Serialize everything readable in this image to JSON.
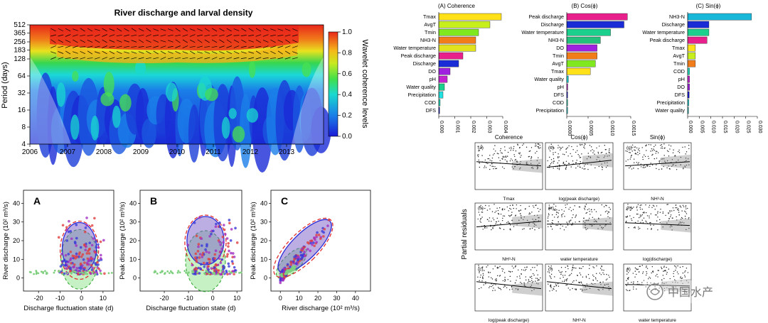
{
  "wavelet": {
    "title": "River discharge and larval density",
    "ylabel": "Period (days)",
    "yticks": [
      "512",
      "365",
      "256",
      "183",
      "128",
      "64",
      "32",
      "16",
      "8",
      "4"
    ],
    "xticks": [
      "2006",
      "2007",
      "2008",
      "2009",
      "2010",
      "2011",
      "2012",
      "2013"
    ],
    "colorbar_label": "Wavelet coherence levels",
    "colorbar_ticks": [
      "1.0",
      "0.8",
      "0.6",
      "0.4",
      "0.2",
      "0.0"
    ],
    "colors": {
      "high": "#e8261a",
      "mid": "#f5e01e",
      "low": "#1e2fd6"
    }
  },
  "scatter": {
    "A": {
      "label": "A",
      "ylabel": "River discharge (10² m³/s)",
      "xlabel": "Discharge fluctuation state (d)",
      "xticks": [
        "-20",
        "-10",
        "0",
        "10"
      ],
      "yticks": [
        "0",
        "10",
        "20",
        "30",
        "40"
      ]
    },
    "B": {
      "label": "B",
      "ylabel": "Peak discharge (10² m³/s)",
      "xlabel": "Discharge fluctuation state (d)",
      "xticks": [
        "-20",
        "-10",
        "0",
        "10"
      ],
      "yticks": [
        "0",
        "10",
        "20",
        "30",
        "40"
      ]
    },
    "C": {
      "label": "C",
      "ylabel": "Peak discharge (10² m³/s)",
      "xlabel": "River discharge (10² m³/s)",
      "xticks": [
        "0",
        "10",
        "20",
        "30",
        "40"
      ],
      "yticks": [
        "0",
        "10",
        "20",
        "30",
        "40"
      ]
    }
  },
  "importance": {
    "panels": [
      {
        "title": "(A) Coherence",
        "xticks": [
          "0.000",
          "0.001",
          "0.002",
          "0.003",
          "0.004"
        ]
      },
      {
        "title": "(B) Cos(ϕ)",
        "xticks": [
          "0.0000",
          "0.0005",
          "0.0010",
          "0.0015"
        ]
      },
      {
        "title": "(C) Sin(ϕ)",
        "xticks": [
          "0.000",
          "0.005",
          "0.010",
          "0.015",
          "0.020",
          "0.025",
          "0.030"
        ]
      }
    ]
  },
  "partial": {
    "col_titles": [
      "Coherence",
      "Cos(ϕ)",
      "Sin(ϕ)"
    ],
    "ylabel": "Partial residuals",
    "xlabels": [
      "Tmax",
      "log(peak discharge)",
      "NH³-N",
      "NH³-N",
      "water temperature",
      "log(discharge)",
      "log(peak discharge)",
      "NH³-N",
      "water temperature"
    ],
    "panel_letters": [
      "(a)",
      "(d)",
      "(g)",
      "(b)",
      "(e)",
      "(h)",
      "(c)",
      "(f)",
      "(i)"
    ],
    "watermark": "中国水产"
  },
  "chart_data": [
    {
      "type": "heatmap",
      "title": "River discharge and larval density",
      "xlabel": "",
      "ylabel": "Period (days)",
      "x": [
        "2006",
        "2007",
        "2008",
        "2009",
        "2010",
        "2011",
        "2012",
        "2013"
      ],
      "y": [
        4,
        8,
        16,
        32,
        64,
        128,
        183,
        256,
        365,
        512
      ],
      "log_y": true,
      "colorbar_range": [
        0.0,
        1.0
      ],
      "colorbar_label": "Wavelet coherence levels"
    },
    {
      "type": "bar",
      "title": "(A) Coherence",
      "orientation": "horizontal",
      "categories": [
        "Tmax",
        "AvgT",
        "Tmin",
        "NH3-N",
        "Water temperature",
        "Peak discharge",
        "Discharge",
        "DO",
        "pH",
        "Water quality",
        "Precipitation",
        "COD",
        "DFS"
      ],
      "values": [
        0.0044,
        0.0036,
        0.0028,
        0.0026,
        0.0026,
        0.0017,
        0.0014,
        0.0008,
        0.0006,
        0.0004,
        0.0003,
        0.0001,
        5e-05
      ],
      "colors": [
        "#ffe11a",
        "#c7ef1c",
        "#7fe81e",
        "#f07c1a",
        "#e0e31d",
        "#e8208c",
        "#1a2cd6",
        "#a020e0",
        "#c522d0",
        "#1ad08c",
        "#20e0e0",
        "#23e0c0",
        "#1a1ad6"
      ],
      "xlim": [
        0,
        0.0045
      ]
    },
    {
      "type": "bar",
      "title": "(B) Cos(ϕ)",
      "orientation": "horizontal",
      "categories": [
        "Peak discharge",
        "Discharge",
        "Water temperature",
        "NH3-N",
        "DO",
        "Tmin",
        "AvgT",
        "Tmax",
        "Water quality",
        "pH",
        "DFS",
        "COD",
        "Precipitation"
      ],
      "values": [
        0.0018,
        0.0017,
        0.0013,
        0.001,
        0.0009,
        0.0009,
        0.00085,
        0.0007,
        5e-05,
        3e-05,
        2e-05,
        1e-05,
        1e-05
      ],
      "colors": [
        "#e8208c",
        "#1a2cd6",
        "#1ad08c",
        "#23c07c",
        "#a020e0",
        "#f07c1a",
        "#7fe81e",
        "#ffe11a",
        "#1ad0d0",
        "#c522d0",
        "#1a1ad6",
        "#23e0c0",
        "#20e0e0"
      ],
      "xlim": [
        0,
        0.0019
      ]
    },
    {
      "type": "bar",
      "title": "(C) Sin(ϕ)",
      "orientation": "horizontal",
      "categories": [
        "NH3-N",
        "Discharge",
        "Water temperature",
        "Peak discharge",
        "Tmax",
        "AvgT",
        "Tmin",
        "COD",
        "pH",
        "DO",
        "DFS",
        "Precipitation",
        "Water quality"
      ],
      "values": [
        0.033,
        0.011,
        0.011,
        0.01,
        0.004,
        0.004,
        0.004,
        0.001,
        0.001,
        0.001,
        0.0008,
        0.0006,
        0.0003
      ],
      "colors": [
        "#1ab8d8",
        "#1a2cd6",
        "#1ad08c",
        "#e8208c",
        "#ffe11a",
        "#c7ef1c",
        "#f07c1a",
        "#23e0c0",
        "#c522d0",
        "#a020e0",
        "#1a1ad6",
        "#20e0e0",
        "#1ad0d0"
      ],
      "xlim": [
        0,
        0.036
      ]
    }
  ]
}
